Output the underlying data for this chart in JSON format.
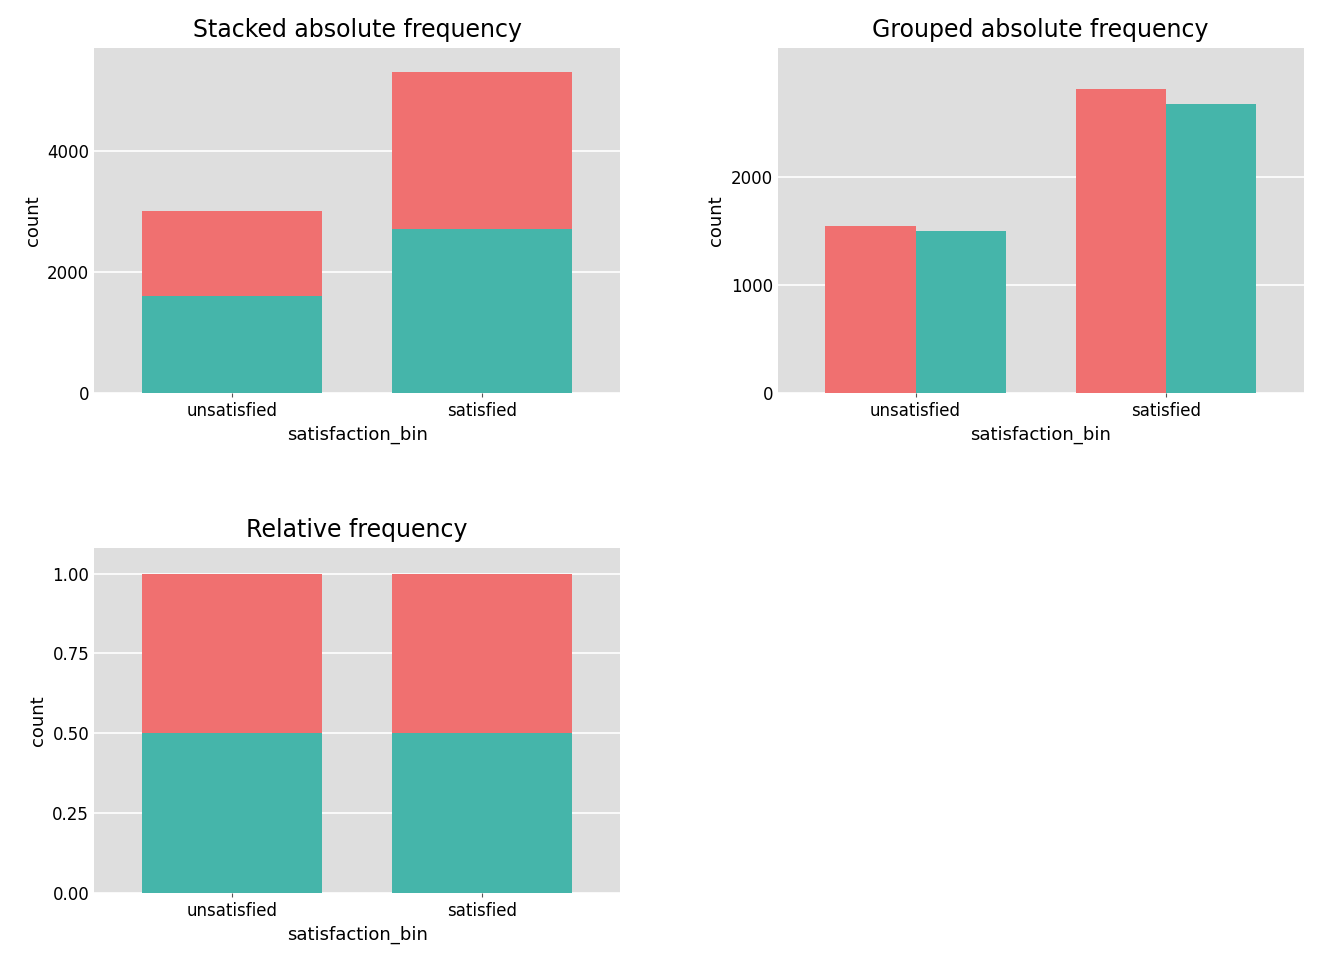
{
  "categories": [
    "unsatisfied",
    "satisfied"
  ],
  "color_teal": "#45B5AA",
  "color_salmon": "#F07070",
  "stacked": {
    "teal": [
      1600,
      2700
    ],
    "salmon": [
      1400,
      2600
    ]
  },
  "grouped": {
    "salmon": [
      1550,
      2820
    ],
    "teal": [
      1500,
      2680
    ]
  },
  "relative": {
    "teal": [
      0.5,
      0.5
    ],
    "salmon": [
      0.5,
      0.5
    ]
  },
  "titles": [
    "Stacked absolute frequency",
    "Grouped absolute frequency",
    "Relative frequency"
  ],
  "xlabel": "satisfaction_bin",
  "ylabel": "count",
  "bg_color": "#DEDEDE",
  "fig_bg": "#FFFFFF",
  "grid_color": "#FFFFFF",
  "title_fontsize": 17,
  "label_fontsize": 13,
  "tick_fontsize": 12
}
